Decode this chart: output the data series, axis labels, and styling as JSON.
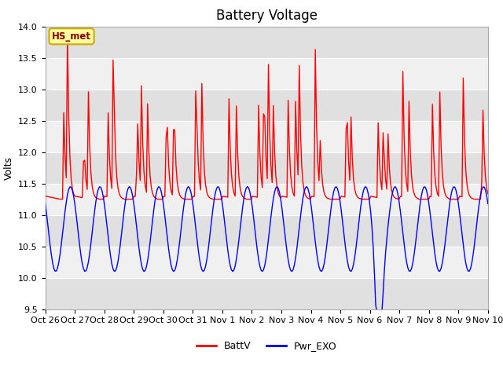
{
  "title": "Battery Voltage",
  "ylabel": "Volts",
  "ylim": [
    9.5,
    14.0
  ],
  "yticks": [
    9.5,
    10.0,
    10.5,
    11.0,
    11.5,
    12.0,
    12.5,
    13.0,
    13.5,
    14.0
  ],
  "xtick_labels": [
    "Oct 26",
    "Oct 27",
    "Oct 28",
    "Oct 29",
    "Oct 30",
    "Oct 31",
    "Nov 1",
    "Nov 2",
    "Nov 3",
    "Nov 4",
    "Nov 5",
    "Nov 6",
    "Nov 7",
    "Nov 8",
    "Nov 9",
    "Nov 10"
  ],
  "legend_labels": [
    "BattV",
    "Pwr_EXO"
  ],
  "legend_colors": [
    "#ff0000",
    "#0000ff"
  ],
  "annotation_text": "HS_met",
  "annotation_bg": "#ffffa0",
  "annotation_border": "#ccaa00",
  "background_color": "#ffffff",
  "plot_bg_light": "#f0f0f0",
  "plot_bg_dark": "#e0e0e0",
  "grid_color": "#ffffff",
  "line_color_red": "#ff0000",
  "line_color_blue": "#0000ff",
  "title_fontsize": 12,
  "label_fontsize": 9,
  "tick_fontsize": 8
}
